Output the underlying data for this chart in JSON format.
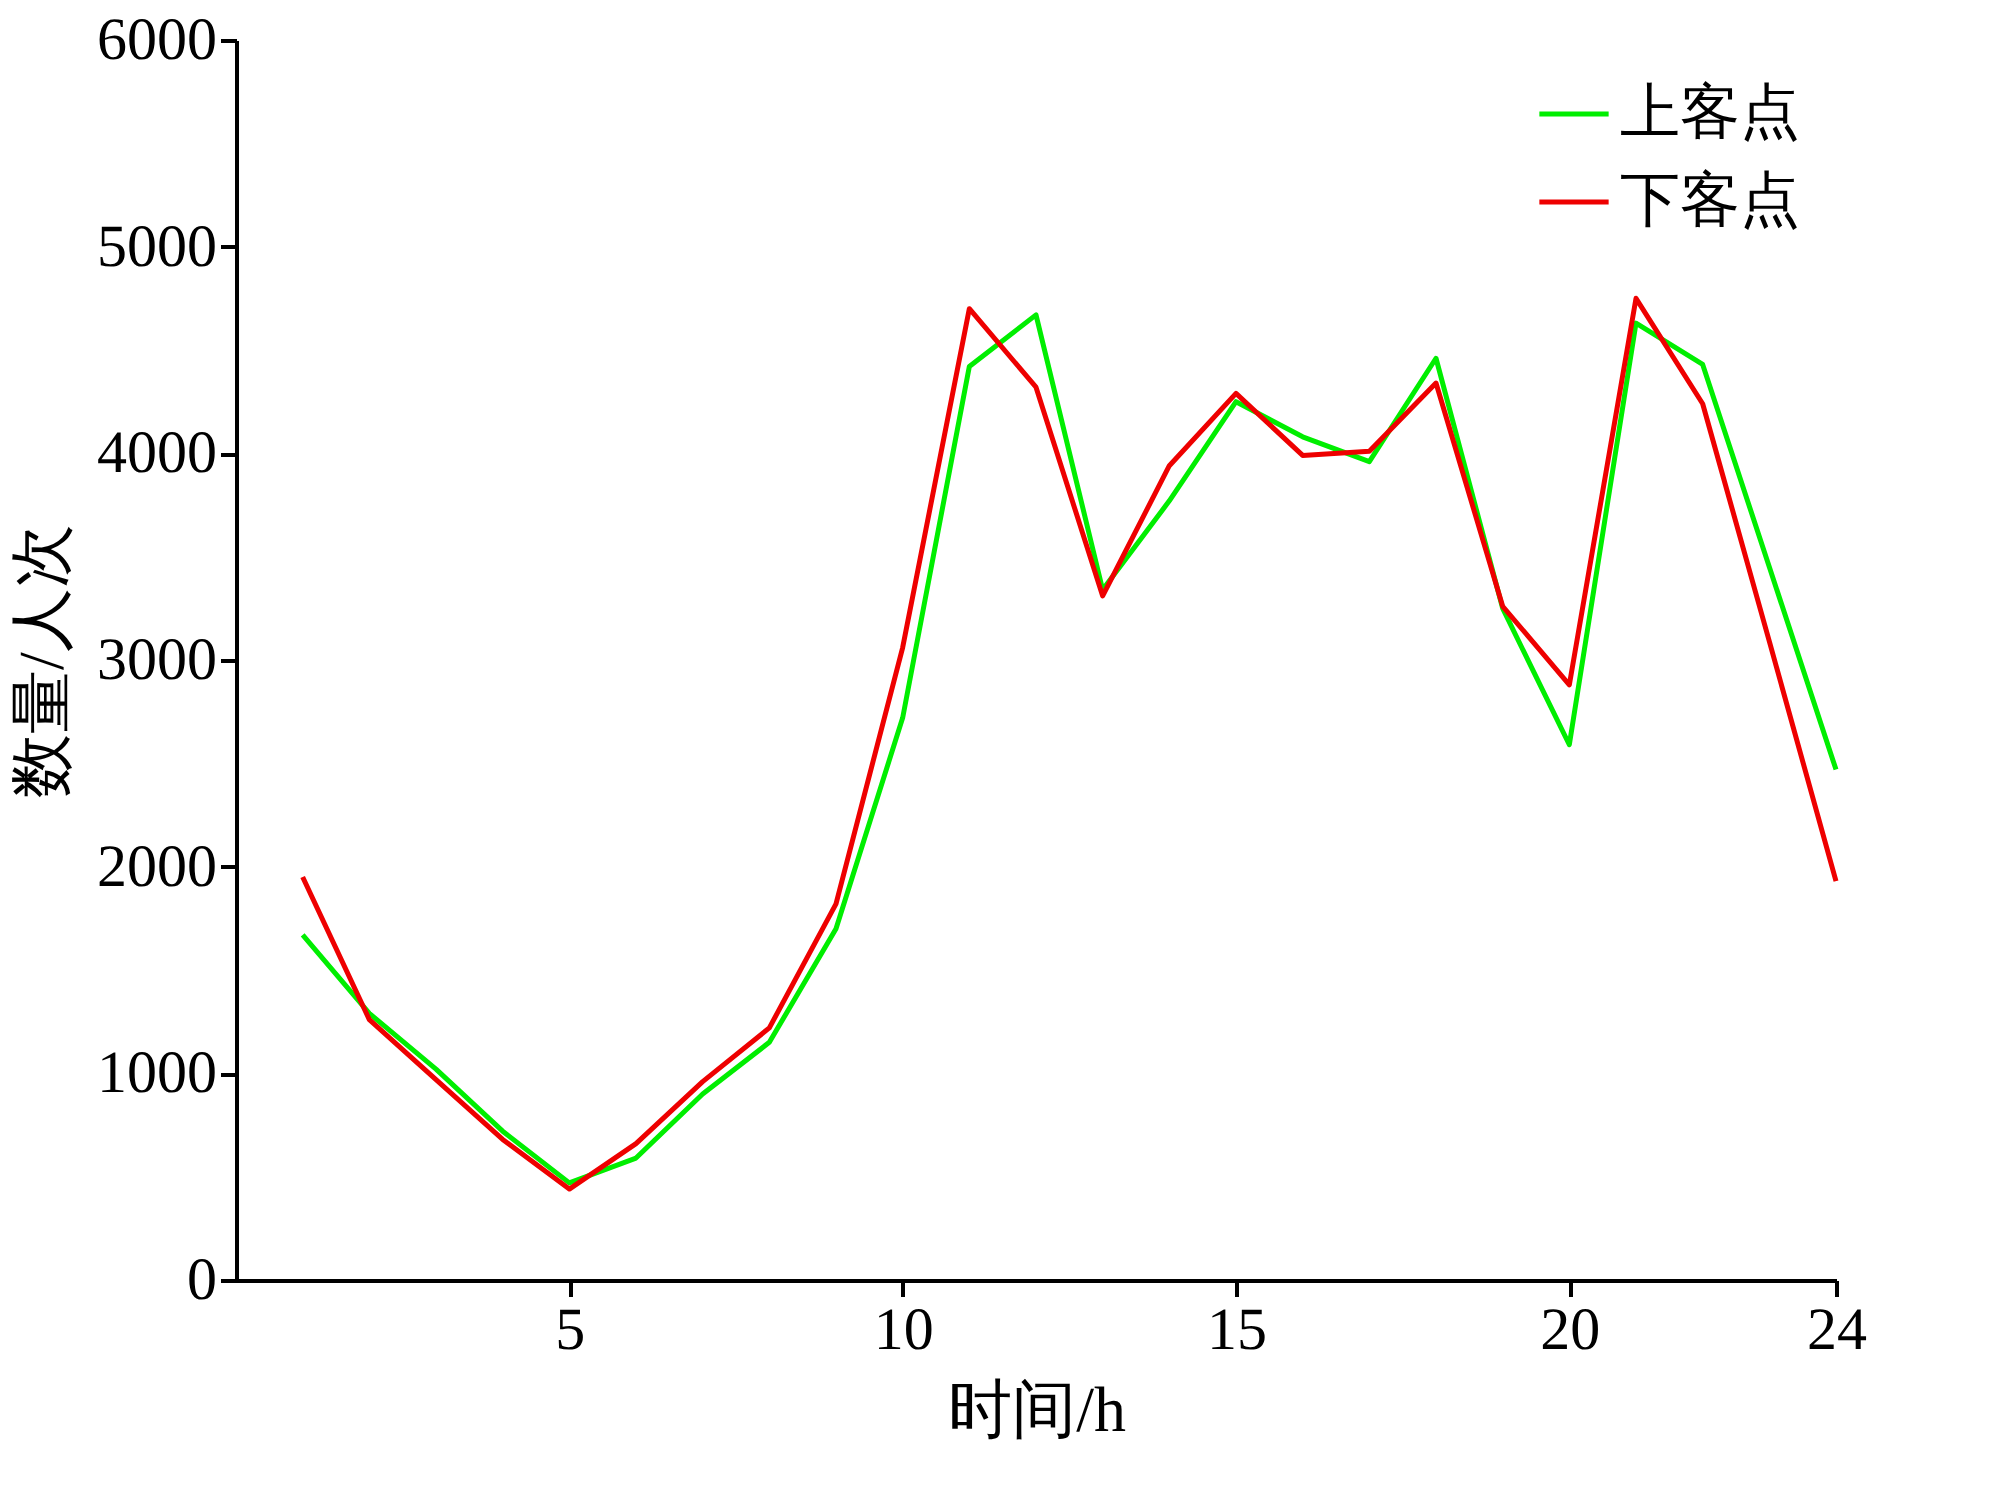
{
  "chart_data": {
    "type": "line",
    "xlabel": "时间/h",
    "ylabel": "数量/人次",
    "x": [
      1,
      2,
      3,
      4,
      5,
      6,
      7,
      8,
      9,
      10,
      11,
      12,
      13,
      14,
      15,
      16,
      17,
      18,
      19,
      20,
      21,
      22,
      23,
      24
    ],
    "series": [
      {
        "name": "上客点",
        "color": "#00ee00",
        "values": [
          1670,
          1290,
          1020,
          720,
          470,
          590,
          900,
          1150,
          1700,
          2720,
          4420,
          4670,
          3340,
          3770,
          4250,
          4080,
          3960,
          4460,
          3250,
          2590,
          4630,
          4430,
          3450,
          2470
        ]
      },
      {
        "name": "下客点",
        "color": "#ee0000",
        "values": [
          1950,
          1260,
          970,
          680,
          440,
          660,
          960,
          1220,
          1820,
          3060,
          4700,
          4320,
          3310,
          3940,
          4290,
          3990,
          4010,
          4340,
          3260,
          2880,
          4750,
          4240,
          3090,
          1930
        ]
      }
    ],
    "xlim": [
      0,
      24
    ],
    "xticks": [
      5,
      10,
      15,
      20,
      24
    ],
    "ylim": [
      0,
      6000
    ],
    "yticks": [
      0,
      1000,
      2000,
      3000,
      4000,
      5000,
      6000
    ],
    "grid": false,
    "legend": "top right",
    "marker": "none",
    "line_style": "solid"
  }
}
